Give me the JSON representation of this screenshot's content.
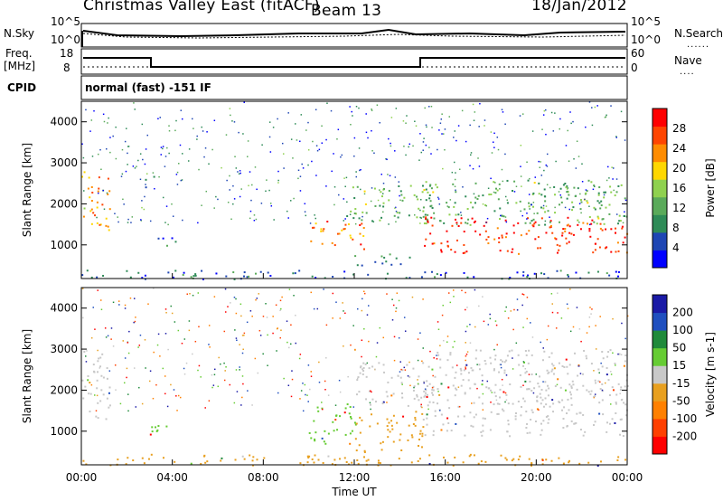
{
  "header": {
    "title": "Christmas Valley East (fitACF)",
    "beam": "Beam 13",
    "date": "18/Jan/2012"
  },
  "noise_panel": {
    "left_label": "N.Sky",
    "left_top_tick": "10^5",
    "left_bottom_tick": "10^0",
    "right_label": "N.Search",
    "right_top_tick": "10^5",
    "right_bottom_tick": "10^0"
  },
  "freq_panel": {
    "left_label": "Freq.",
    "left_unit": "[MHz]",
    "left_top_tick": "18",
    "left_bottom_tick": "8",
    "right_label": "Nave",
    "right_top_tick": "60",
    "right_bottom_tick": "0"
  },
  "cpid_panel": {
    "label": "CPID",
    "text": "normal (fast) -151 IF"
  },
  "chart_data": [
    {
      "type": "heatmap",
      "name": "power",
      "ylabel": "Slant Range [km]",
      "yticks": [
        "1000",
        "2000",
        "3000",
        "4000"
      ],
      "ylim": [
        180,
        4500
      ],
      "colorbar_label": "Power [dB]",
      "colorbar_ticks": [
        "4",
        "8",
        "12",
        "16",
        "20",
        "24",
        "28"
      ],
      "colorbar_range": [
        0,
        30
      ],
      "colors": [
        "#0000ff",
        "#1e46b4",
        "#2e8b57",
        "#5aaa5a",
        "#8fd14f",
        "#ffd700",
        "#ff8c00",
        "#ff4500",
        "#ff0000"
      ],
      "regions": [
        {
          "t0": 0.0,
          "t1": 1.3,
          "r0": 1300,
          "r1": 2800,
          "level": 20
        },
        {
          "t0": 2.8,
          "t1": 3.2,
          "r0": 2300,
          "r1": 2800,
          "level": 10
        },
        {
          "t0": 3.0,
          "t1": 4.5,
          "r0": 1000,
          "r1": 1200,
          "level": 6
        },
        {
          "t0": 10.0,
          "t1": 12.5,
          "r0": 900,
          "r1": 1600,
          "level": 22
        },
        {
          "t0": 11.5,
          "t1": 15.5,
          "r0": 1600,
          "r1": 2500,
          "level": 12
        },
        {
          "t0": 12.0,
          "t1": 14.5,
          "r0": 500,
          "r1": 800,
          "level": 8
        },
        {
          "t0": 15.0,
          "t1": 24.0,
          "r0": 800,
          "r1": 1700,
          "level": 27
        },
        {
          "t0": 15.0,
          "t1": 24.0,
          "r0": 1500,
          "r1": 2600,
          "level": 12
        },
        {
          "t0": 0.0,
          "t1": 24.0,
          "r0": 180,
          "r1": 400,
          "level": 6
        }
      ]
    },
    {
      "type": "heatmap",
      "name": "velocity",
      "ylabel": "Slant Range [km]",
      "yticks": [
        "1000",
        "2000",
        "3000",
        "4000"
      ],
      "ylim": [
        180,
        4500
      ],
      "xlabel": "Time UT",
      "xticks": [
        "00:00",
        "04:00",
        "08:00",
        "12:00",
        "16:00",
        "20:00",
        "00:00"
      ],
      "xlim": [
        0,
        24
      ],
      "colorbar_label": "Velocity [m s-1]",
      "colorbar_ticks": [
        "200",
        "100",
        "50",
        "15",
        "-15",
        "-50",
        "-100",
        "-200"
      ],
      "colors": [
        "#1a1aa6",
        "#1f4fbf",
        "#1f8a3a",
        "#66cc33",
        "#c8c8c8",
        "#e8a020",
        "#ff8000",
        "#ff4000",
        "#ff0000"
      ],
      "regions": [
        {
          "t0": 0.0,
          "t1": 1.3,
          "r0": 1300,
          "r1": 3000,
          "level": "15"
        },
        {
          "t0": 3.0,
          "t1": 4.5,
          "r0": 900,
          "r1": 1200,
          "level": "50"
        },
        {
          "t0": 10.0,
          "t1": 12.0,
          "r0": 700,
          "r1": 1700,
          "level": "50"
        },
        {
          "t0": 12.0,
          "t1": 15.0,
          "r0": 500,
          "r1": 1500,
          "level": "-50"
        },
        {
          "t0": 12.0,
          "t1": 15.5,
          "r0": 1600,
          "r1": 2700,
          "level": "15"
        },
        {
          "t0": 15.0,
          "t1": 24.0,
          "r0": 900,
          "r1": 2200,
          "level": "15"
        },
        {
          "t0": 15.5,
          "t1": 24.0,
          "r0": 2000,
          "r1": 3000,
          "level": "15"
        },
        {
          "t0": 0.0,
          "t1": 24.0,
          "r0": 180,
          "r1": 450,
          "level": "-50"
        }
      ]
    }
  ]
}
